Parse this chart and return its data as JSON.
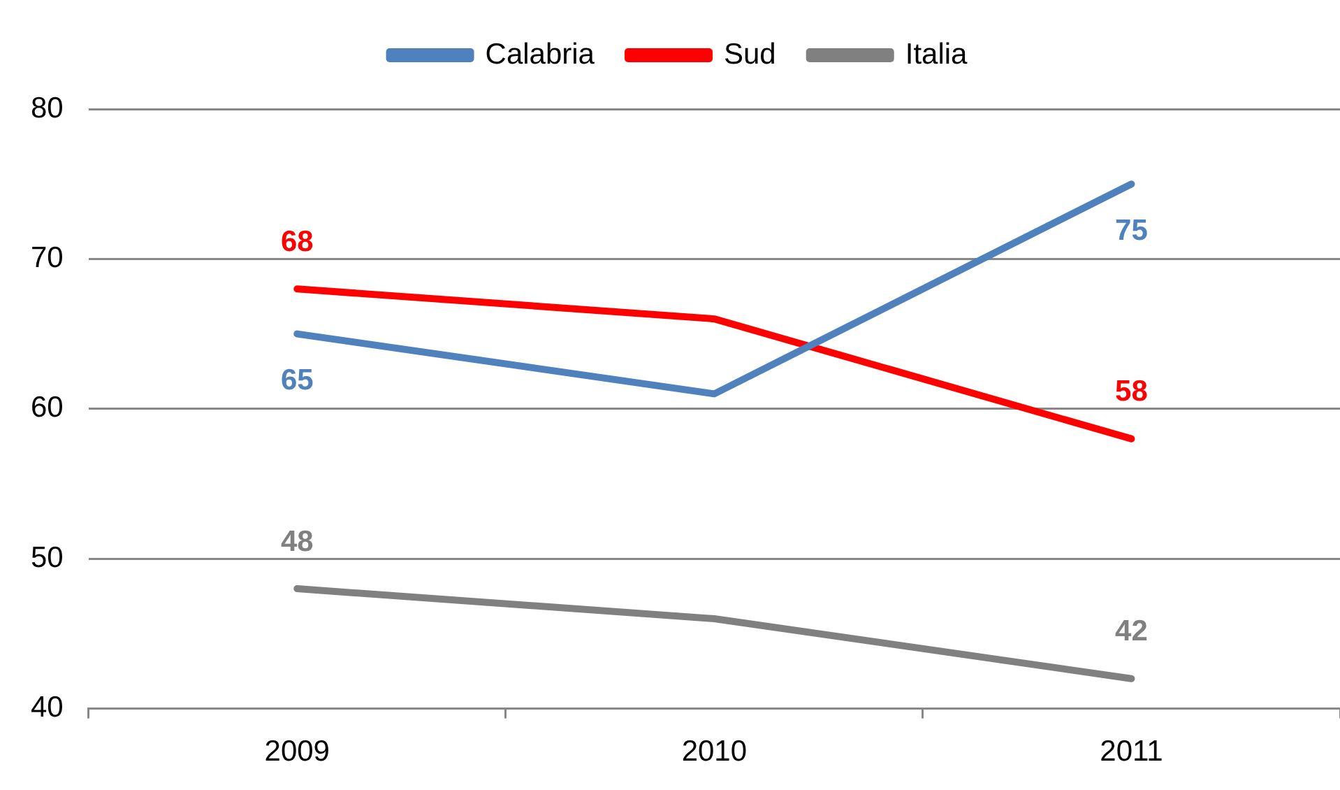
{
  "chart_data": {
    "type": "line",
    "categories": [
      "2009",
      "2010",
      "2011"
    ],
    "series": [
      {
        "name": "Calabria",
        "color": "#4f81bd",
        "values": [
          65,
          61,
          75
        ],
        "value_labels": [
          "65",
          null,
          "75"
        ]
      },
      {
        "name": "Sud",
        "color": "#ff0000",
        "values": [
          68,
          66,
          58
        ],
        "value_labels": [
          "68",
          null,
          "58"
        ]
      },
      {
        "name": "Italia",
        "color": "#808080",
        "values": [
          48,
          46,
          42
        ],
        "value_labels": [
          "48",
          null,
          "42"
        ]
      }
    ],
    "ylim": [
      40,
      80
    ],
    "yticks": [
      40,
      50,
      60,
      70,
      80
    ],
    "grid": "y",
    "legend": "top",
    "marker": "none",
    "line_style": "solid"
  }
}
